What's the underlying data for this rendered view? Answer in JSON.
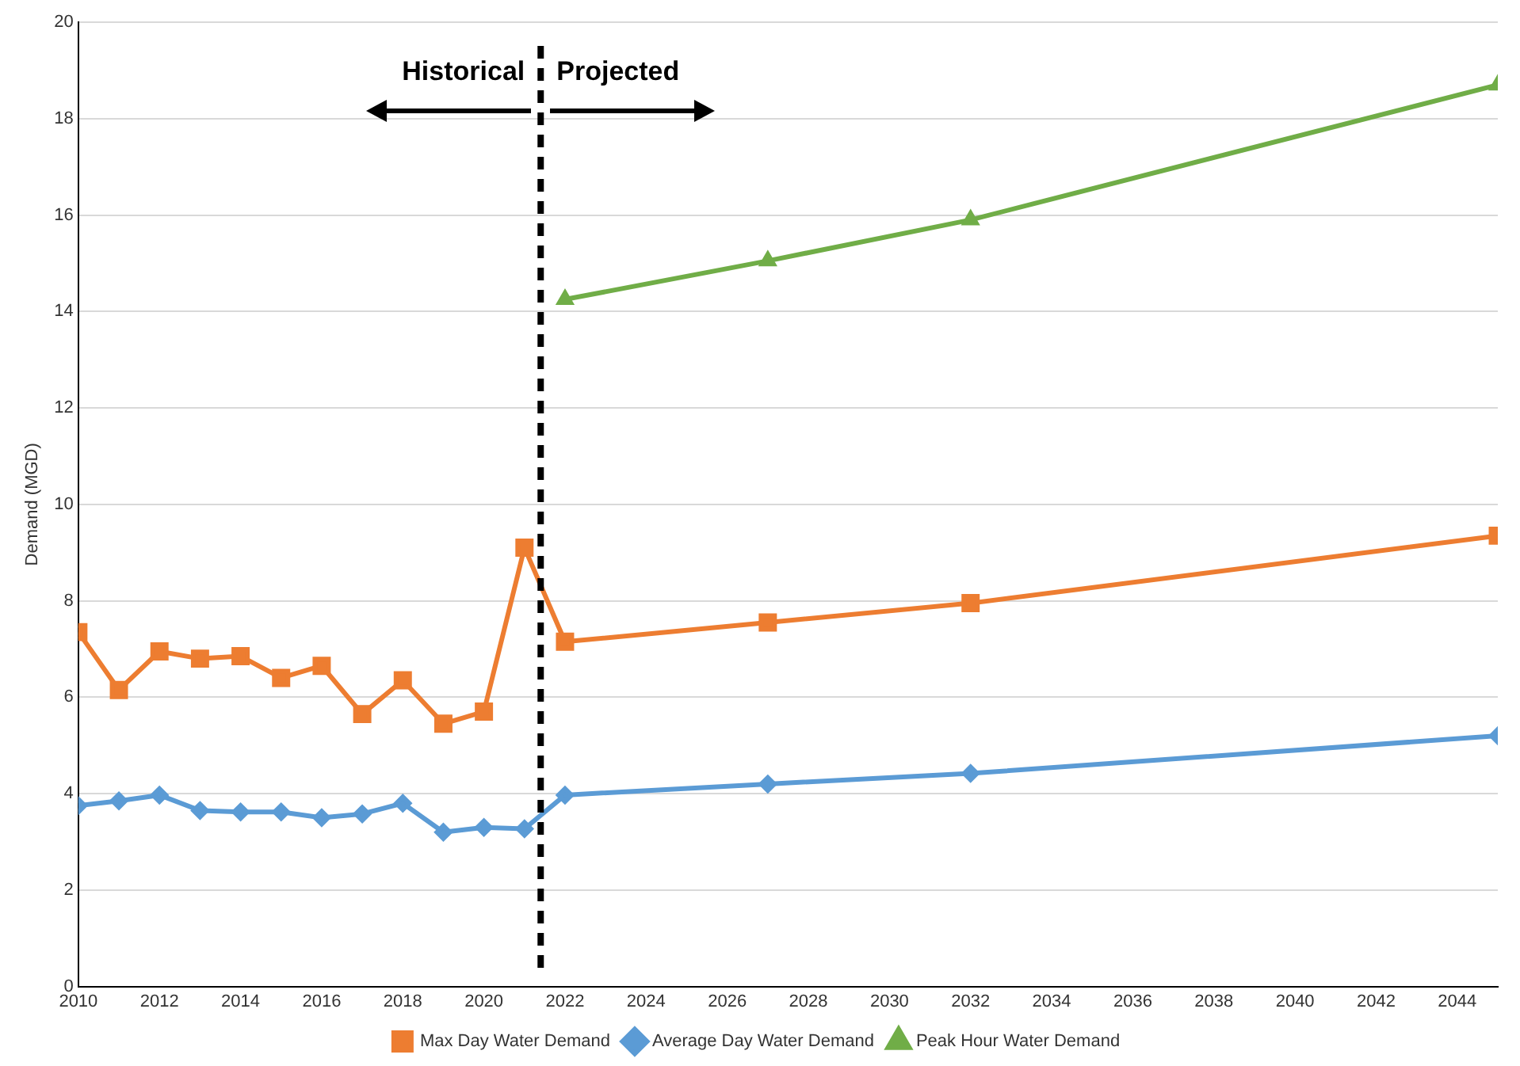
{
  "chart_data": {
    "type": "line",
    "ylabel": "Demand (MGD)",
    "xlim": [
      2010,
      2045
    ],
    "xticks": [
      2010,
      2012,
      2014,
      2016,
      2018,
      2020,
      2022,
      2024,
      2026,
      2028,
      2030,
      2032,
      2034,
      2036,
      2038,
      2040,
      2042,
      2044
    ],
    "ylim": [
      0,
      20
    ],
    "yticks": [
      0,
      2,
      4,
      6,
      8,
      10,
      12,
      14,
      16,
      18,
      20
    ],
    "grid": "y",
    "legend": "bottom",
    "line_style": "solid",
    "series": [
      {
        "name": "Max Day Water Demand",
        "color": "#ed7d31",
        "marker": "square",
        "x": [
          2010,
          2011,
          2012,
          2013,
          2014,
          2015,
          2016,
          2017,
          2018,
          2019,
          2020,
          2021,
          2022,
          2027,
          2032,
          2045
        ],
        "values": [
          7.35,
          6.15,
          6.95,
          6.8,
          6.85,
          6.4,
          6.65,
          5.65,
          6.35,
          5.45,
          5.7,
          9.1,
          7.15,
          7.55,
          7.95,
          9.35
        ]
      },
      {
        "name": "Average Day Water Demand",
        "color": "#5b9bd5",
        "marker": "diamond",
        "x": [
          2010,
          2011,
          2012,
          2013,
          2014,
          2015,
          2016,
          2017,
          2018,
          2019,
          2020,
          2021,
          2022,
          2027,
          2032,
          2045
        ],
        "values": [
          3.75,
          3.85,
          3.97,
          3.65,
          3.62,
          3.62,
          3.5,
          3.58,
          3.8,
          3.2,
          3.3,
          3.27,
          3.97,
          4.2,
          4.42,
          5.2
        ]
      },
      {
        "name": "Peak Hour Water Demand",
        "color": "#70ad47",
        "marker": "triangle",
        "x": [
          2022,
          2027,
          2032,
          2045
        ],
        "values": [
          14.25,
          15.05,
          15.9,
          18.7
        ]
      }
    ],
    "ref_lines": [
      {
        "axis": "x",
        "value": 2021.4,
        "color": "#000000",
        "line_style": "dashed"
      }
    ],
    "annotations": [
      "Historical",
      "Projected"
    ]
  }
}
